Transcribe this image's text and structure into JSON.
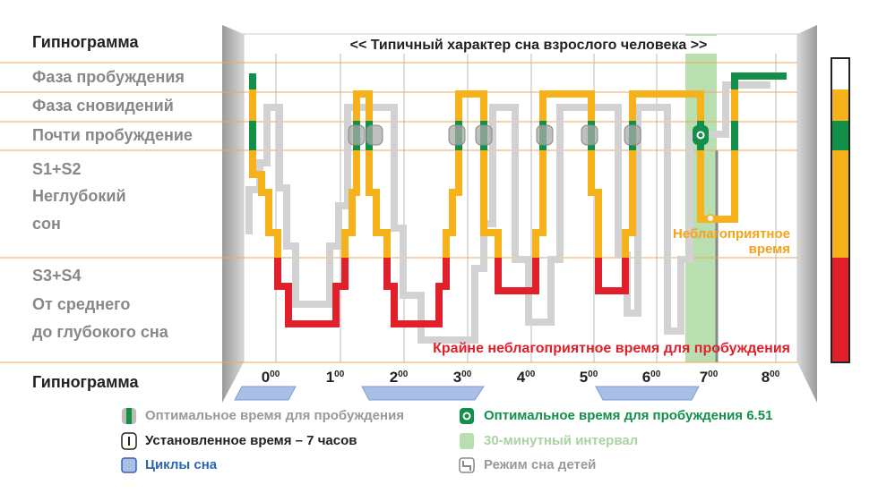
{
  "header": {
    "title": "Гипнограмма",
    "footer": "Гипнограмма"
  },
  "rows": {
    "wake": "Фаза пробуждения",
    "rem": "Фаза сновидений",
    "near_wake": "Почти пробуждение",
    "light": [
      "S1+S2",
      "Неглубокий",
      "сон"
    ],
    "deep": [
      "S3+S4",
      "От среднего",
      "до глубокого сна"
    ]
  },
  "chart": {
    "title": "<< Типичный характер сна взрослого человека >>",
    "hours": [
      {
        "h": "0",
        "m": "00"
      },
      {
        "h": "1",
        "m": "00"
      },
      {
        "h": "2",
        "m": "00"
      },
      {
        "h": "3",
        "m": "00"
      },
      {
        "h": "4",
        "m": "00"
      },
      {
        "h": "5",
        "m": "00"
      },
      {
        "h": "6",
        "m": "00"
      },
      {
        "h": "7",
        "m": "00"
      },
      {
        "h": "8",
        "m": "00"
      }
    ],
    "unfavorable": [
      "Неблагоприятное",
      "время"
    ],
    "very_unfavorable": "Крайне неблагоприятное время для пробуждения"
  },
  "legend": {
    "optimal": "Оптимальное время для пробуждения",
    "optimal_exact": "Оптимальное время для пробуждения 6.51",
    "alarm": "Установленное время – 7 часов",
    "interval": "30-минутный интервал",
    "cycles": "Циклы сна",
    "children": "Режим сна детей"
  }
}
